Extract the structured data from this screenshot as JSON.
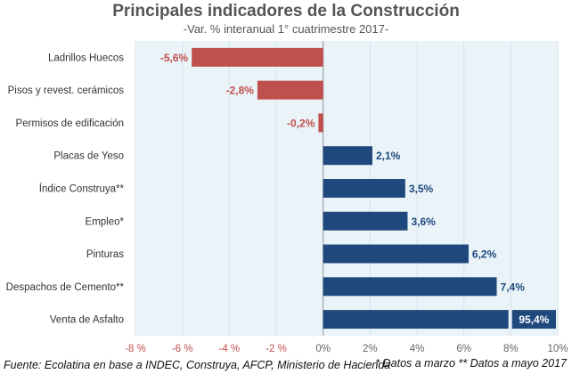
{
  "chart_data": {
    "type": "bar",
    "orientation": "horizontal",
    "title": "Principales indicadores de la Construcción",
    "subtitle": "-Var. % interanual 1° cuatrimestre 2017-",
    "categories": [
      "Ladrillos Huecos",
      "Pisos y revest. cerámicos",
      "Permisos de edificación",
      "Placas de Yeso",
      "Índice Construya**",
      "Empleo*",
      "Pinturas",
      "Despachos de Cemento**",
      "Venta de Asfalto"
    ],
    "values": [
      -5.6,
      -2.8,
      -0.2,
      2.1,
      3.5,
      3.6,
      6.2,
      7.4,
      95.4
    ],
    "data_labels": [
      "-5,6%",
      "-2,8%",
      "-0,2%",
      "2,1%",
      "3,5%",
      "3,6%",
      "6,2%",
      "7,4%",
      "95,4%"
    ],
    "xlim": [
      -8,
      10
    ],
    "x_ticks": [
      -8,
      -6,
      -4,
      -2,
      0,
      2,
      4,
      6,
      8,
      10
    ],
    "x_tick_labels": [
      "-8 %",
      "-6 %",
      "-4 %",
      "-2 %",
      "0%",
      "2%",
      "4%",
      "6%",
      "8%",
      "10%"
    ],
    "colors": {
      "negative": "#c0504d",
      "positive": "#1f497d",
      "plot_bg": "#eaf3f8"
    },
    "grid": true,
    "clipped_bar_note": "Venta de Asfalto bar exceeds axis"
  },
  "source": "Fuente: Ecolatina en base a INDEC, Construya, AFCP, Ministerio de Hacienda",
  "note": "* Datos a marzo ** Datos a mayo 2017"
}
